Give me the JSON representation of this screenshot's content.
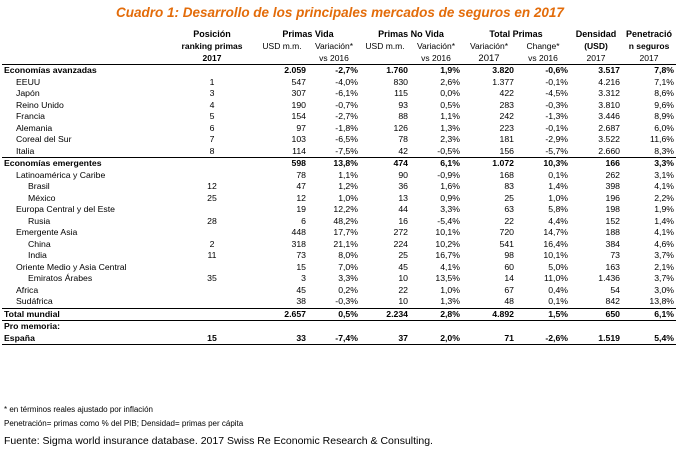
{
  "title": "Cuadro 1: Desarrollo de los principales mercados de seguros en 2017",
  "headers": {
    "row1": [
      "",
      "Posición",
      "Primas Vida",
      "Primas No Vida",
      "Total Primas",
      "",
      "Densidad",
      "Penetració"
    ],
    "row2": [
      "",
      "ranking primas",
      "USD m.m.",
      "Variación*",
      "USD m.m.",
      "Variación*",
      "Variación*",
      "Change*",
      "(USD)",
      "n seguros"
    ],
    "row3": [
      "",
      "2017",
      "",
      "vs 2016",
      "",
      "vs 2016",
      "2017",
      "vs 2016",
      "2017",
      "2017"
    ]
  },
  "rows": [
    {
      "type": "group",
      "cells": [
        "Economías avanzadas",
        "",
        "2.059",
        "-2,7%",
        "1.760",
        "1,9%",
        "3.820",
        "-0,6%",
        "3.517",
        "7,8%"
      ]
    },
    {
      "type": "i1",
      "cells": [
        "EEUU",
        "1",
        "547",
        "-4,0%",
        "830",
        "2,6%",
        "1.377",
        "-0,1%",
        "4.216",
        "7,1%"
      ]
    },
    {
      "type": "i1",
      "cells": [
        "Japón",
        "3",
        "307",
        "-6,1%",
        "115",
        "0,0%",
        "422",
        "-4,5%",
        "3.312",
        "8,6%"
      ]
    },
    {
      "type": "i1",
      "cells": [
        "Reino Unido",
        "4",
        "190",
        "-0,7%",
        "93",
        "0,5%",
        "283",
        "-0,3%",
        "3.810",
        "9,6%"
      ]
    },
    {
      "type": "i1",
      "cells": [
        "Francia",
        "5",
        "154",
        "-2,7%",
        "88",
        "1,1%",
        "242",
        "-1,3%",
        "3.446",
        "8,9%"
      ]
    },
    {
      "type": "i1",
      "cells": [
        "Alemania",
        "6",
        "97",
        "-1,8%",
        "126",
        "1,3%",
        "223",
        "-0,1%",
        "2.687",
        "6,0%"
      ]
    },
    {
      "type": "i1",
      "cells": [
        "Coreal del Sur",
        "7",
        "103",
        "-6,5%",
        "78",
        "2,3%",
        "181",
        "-2,9%",
        "3.522",
        "11,6%"
      ]
    },
    {
      "type": "i1",
      "cells": [
        "Italia",
        "8",
        "114",
        "-7,5%",
        "42",
        "-0,5%",
        "156",
        "-5,7%",
        "2.660",
        "8,3%"
      ]
    },
    {
      "type": "group",
      "cells": [
        "Economías emergentes",
        "",
        "598",
        "13,8%",
        "474",
        "6,1%",
        "1.072",
        "10,3%",
        "166",
        "3,3%"
      ]
    },
    {
      "type": "i1",
      "cells": [
        "Latinoamérica y Caribe",
        "",
        "78",
        "1,1%",
        "90",
        "-0,9%",
        "168",
        "0,1%",
        "262",
        "3,1%"
      ]
    },
    {
      "type": "i2",
      "cells": [
        "Brasil",
        "12",
        "47",
        "1,2%",
        "36",
        "1,6%",
        "83",
        "1,4%",
        "398",
        "4,1%"
      ]
    },
    {
      "type": "i2",
      "cells": [
        "México",
        "25",
        "12",
        "1,0%",
        "13",
        "0,9%",
        "25",
        "1,0%",
        "196",
        "2,2%"
      ]
    },
    {
      "type": "i1",
      "cells": [
        "Europa Central y del Este",
        "",
        "19",
        "12,2%",
        "44",
        "3,3%",
        "63",
        "5,8%",
        "198",
        "1,9%"
      ]
    },
    {
      "type": "i2",
      "cells": [
        "Rusia",
        "28",
        "6",
        "48,2%",
        "16",
        "-5,4%",
        "22",
        "4,4%",
        "152",
        "1,4%"
      ]
    },
    {
      "type": "i1",
      "cells": [
        "Emergente Asia",
        "",
        "448",
        "17,7%",
        "272",
        "10,1%",
        "720",
        "14,7%",
        "188",
        "4,1%"
      ]
    },
    {
      "type": "i2",
      "cells": [
        "China",
        "2",
        "318",
        "21,1%",
        "224",
        "10,2%",
        "541",
        "16,4%",
        "384",
        "4,6%"
      ]
    },
    {
      "type": "i2",
      "cells": [
        "India",
        "11",
        "73",
        "8,0%",
        "25",
        "16,7%",
        "98",
        "10,1%",
        "73",
        "3,7%"
      ]
    },
    {
      "type": "i1",
      "cells": [
        "Oriente Medio y Asia Central",
        "",
        "15",
        "7,0%",
        "45",
        "4,1%",
        "60",
        "5,0%",
        "163",
        "2,1%"
      ]
    },
    {
      "type": "i2",
      "cells": [
        "Emiratos Árabes",
        "35",
        "3",
        "3,3%",
        "10",
        "13,5%",
        "14",
        "11,0%",
        "1.436",
        "3,7%"
      ]
    },
    {
      "type": "i1",
      "cells": [
        "Africa",
        "",
        "45",
        "0,2%",
        "22",
        "1,0%",
        "67",
        "0,4%",
        "54",
        "3,0%"
      ]
    },
    {
      "type": "i1",
      "cells": [
        "Sudáfrica",
        "",
        "38",
        "-0,3%",
        "10",
        "1,3%",
        "48",
        "0,1%",
        "842",
        "13,8%"
      ]
    },
    {
      "type": "total",
      "cells": [
        "Total mundial",
        "",
        "2.657",
        "0,5%",
        "2.234",
        "2,8%",
        "4.892",
        "1,5%",
        "650",
        "6,1%"
      ]
    },
    {
      "type": "memo",
      "cells": [
        "Pro memoria:",
        "",
        "",
        "",
        "",
        "",
        "",
        "",
        "",
        ""
      ]
    },
    {
      "type": "espana",
      "cells": [
        "España",
        "15",
        "33",
        "-7,4%",
        "37",
        "2,0%",
        "71",
        "-2,6%",
        "1.519",
        "5,4%"
      ]
    }
  ],
  "notes": [
    "* en términos reales ajustado por inflación",
    "Penetración= primas como % del PIB; Densidad= primas per cápita"
  ],
  "source": "Fuente: Sigma world insurance database. 2017 Swiss Re Economic Research & Consulting."
}
